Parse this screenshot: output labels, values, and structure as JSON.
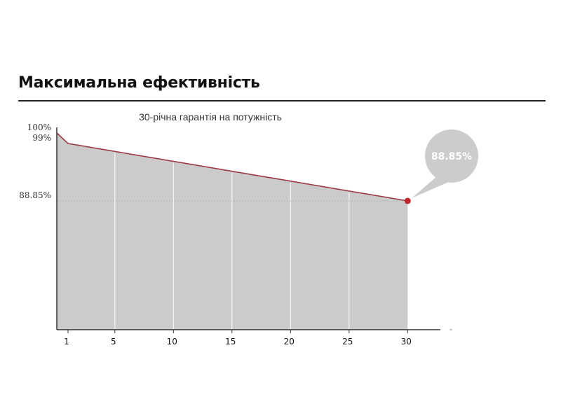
{
  "heading": "Максимальна ефективність",
  "colors": {
    "area_fill": "#cbcbcb",
    "line": "#9b3a44",
    "point": "#c0272d",
    "callout": "#cccccc",
    "axis": "#333333",
    "grid": "#ffffff"
  },
  "chart_data": {
    "type": "area",
    "title": "30-річна гарантія на потужність",
    "xlabel": "",
    "ylabel": "",
    "x_ticks": [
      "1",
      "5",
      "10",
      "15",
      "20",
      "25",
      "30"
    ],
    "y_ticks": [
      "100%",
      "99%",
      "88.85%"
    ],
    "series": [
      {
        "x": [
          0,
          1,
          30
        ],
        "y": [
          100,
          99,
          88.85
        ]
      }
    ],
    "callout": {
      "x": 30,
      "y": 88.85,
      "label": "88.85%"
    },
    "grid": true,
    "legend": "none"
  }
}
